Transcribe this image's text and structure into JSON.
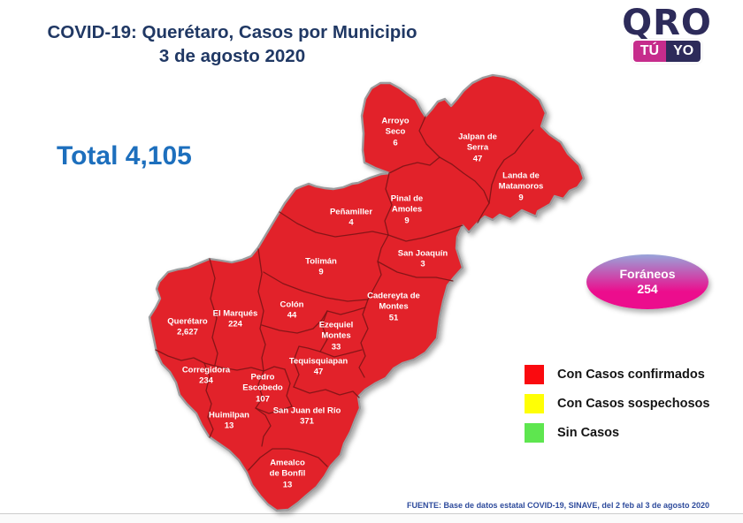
{
  "title": {
    "line1": "COVID-19: Querétaro, Casos por Municipio",
    "line2": "3 de agosto 2020"
  },
  "logo": {
    "qro": "QRO",
    "tu": "TÚ",
    "yo": "YO"
  },
  "total": {
    "label": "Total",
    "value": "4,105"
  },
  "map": {
    "fill_color": "#e2242b",
    "border_color": "#7e1416",
    "outline_color": "#9c9c9e",
    "municipalities": [
      {
        "name": "Arroyo Seco",
        "name_lines": "Arroyo\nSeco",
        "cases": "6"
      },
      {
        "name": "Jalpan de Serra",
        "name_lines": "Jalpan de\nSerra",
        "cases": "47"
      },
      {
        "name": "Landa de Matamoros",
        "name_lines": "Landa de\nMatamoros",
        "cases": "9"
      },
      {
        "name": "Peñamiller",
        "name_lines": "Peñamiller",
        "cases": "4"
      },
      {
        "name": "Pinal de Amoles",
        "name_lines": "Pinal de\nAmoles",
        "cases": "9"
      },
      {
        "name": "San Joaquín",
        "name_lines": "San Joaquín",
        "cases": "3"
      },
      {
        "name": "Tolimán",
        "name_lines": "Tolimán",
        "cases": "9"
      },
      {
        "name": "Cadereyta de Montes",
        "name_lines": "Cadereyta de\nMontes",
        "cases": "51"
      },
      {
        "name": "Colón",
        "name_lines": "Colón",
        "cases": "44"
      },
      {
        "name": "El Marqués",
        "name_lines": "El  Marqués",
        "cases": "224"
      },
      {
        "name": "Querétaro",
        "name_lines": "Querétaro",
        "cases": "2,627"
      },
      {
        "name": "Ezequiel Montes",
        "name_lines": "Ezequiel\nMontes",
        "cases": "33"
      },
      {
        "name": "Tequisquiapan",
        "name_lines": "Tequisquiapan",
        "cases": "47"
      },
      {
        "name": "Corregidora",
        "name_lines": "Corregidora",
        "cases": "234"
      },
      {
        "name": "Pedro Escobedo",
        "name_lines": "Pedro\nEscobedo",
        "cases": "107"
      },
      {
        "name": "Huimilpan",
        "name_lines": "Huimilpan",
        "cases": "13"
      },
      {
        "name": "San Juan del Río",
        "name_lines": "San Juan del Río",
        "cases": "371"
      },
      {
        "name": "Amealco de Bonfil",
        "name_lines": "Amealco\nde Bonfil",
        "cases": "13"
      }
    ]
  },
  "foraneos": {
    "label": "Foráneos",
    "value": "254",
    "gradient_top": "#98a4da",
    "gradient_bottom": "#ec0d8d"
  },
  "legend": {
    "items": [
      {
        "label": "Con Casos confirmados",
        "color": "#fa0a0f"
      },
      {
        "label": "Con Casos sospechosos",
        "color": "#ffff05"
      },
      {
        "label": "Sin Casos",
        "color": "#5ee64f"
      }
    ]
  },
  "source": {
    "text": "FUENTE: Base de datos estatal COVID-19, SINAVE, del 2 feb al 3 de agosto 2020"
  },
  "colors": {
    "title": "#203864",
    "total": "#1d6fbd",
    "source": "#2e4b9c",
    "logo_navy": "#2d2b5a",
    "logo_magenta": "#c62c8c"
  }
}
